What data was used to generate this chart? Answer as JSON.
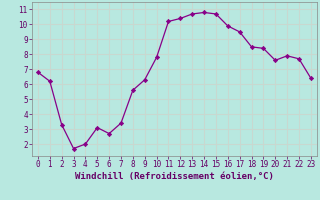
{
  "x": [
    0,
    1,
    2,
    3,
    4,
    5,
    6,
    7,
    8,
    9,
    10,
    11,
    12,
    13,
    14,
    15,
    16,
    17,
    18,
    19,
    20,
    21,
    22,
    23
  ],
  "y": [
    6.8,
    6.2,
    3.3,
    1.7,
    2.0,
    3.1,
    2.7,
    3.4,
    5.6,
    6.3,
    7.8,
    10.2,
    10.4,
    10.7,
    10.8,
    10.7,
    9.9,
    9.5,
    8.5,
    8.4,
    7.6,
    7.9,
    7.7,
    6.4
  ],
  "line_color": "#880088",
  "marker": "D",
  "marker_size": 2.2,
  "bg_color": "#b8e8e0",
  "grid_color": "#c8d8d0",
  "xlabel": "Windchill (Refroidissement éolien,°C)",
  "xlim": [
    -0.5,
    23.5
  ],
  "ylim": [
    1.2,
    11.5
  ],
  "yticks": [
    2,
    3,
    4,
    5,
    6,
    7,
    8,
    9,
    10,
    11
  ],
  "xticks": [
    0,
    1,
    2,
    3,
    4,
    5,
    6,
    7,
    8,
    9,
    10,
    11,
    12,
    13,
    14,
    15,
    16,
    17,
    18,
    19,
    20,
    21,
    22,
    23
  ],
  "tick_label_fontsize": 5.5,
  "xlabel_fontsize": 6.5,
  "axis_label_color": "#660066",
  "spine_color": "#888888"
}
